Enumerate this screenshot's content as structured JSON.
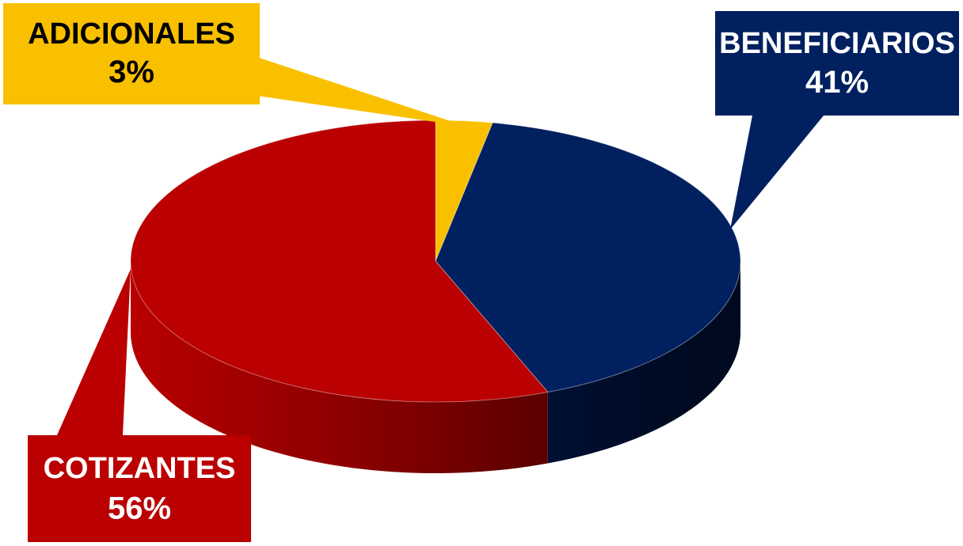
{
  "chart_data": {
    "type": "pie",
    "three_d": true,
    "legend": "none",
    "categories": [
      "ADICIONALES",
      "BENEFICIARIOS",
      "COTIZANTES"
    ],
    "values": [
      3,
      41,
      56
    ],
    "value_labels": [
      "3%",
      "41%",
      "56%"
    ],
    "colors": [
      "#F9C000",
      "#00205F",
      "#BA0000"
    ],
    "label_text_colors": [
      "#000000",
      "#FFFFFF",
      "#FFFFFF"
    ]
  }
}
